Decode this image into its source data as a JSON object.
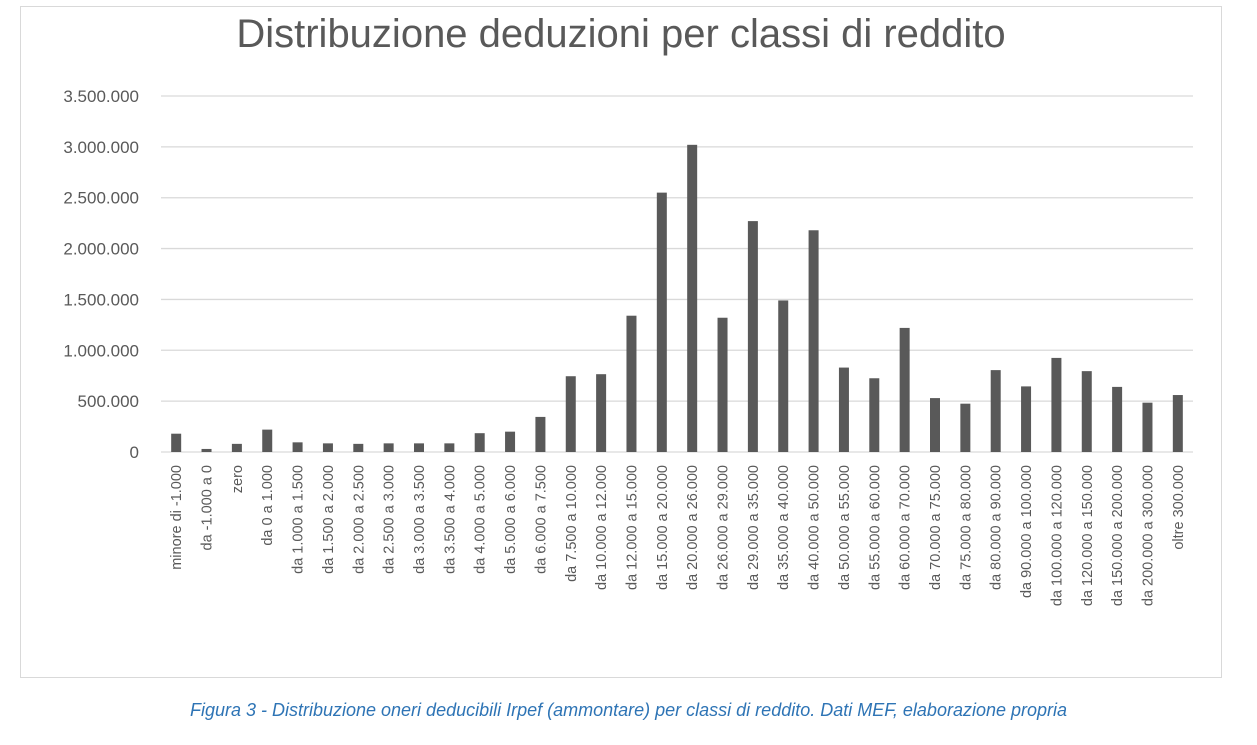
{
  "caption": "Figura 3 - Distribuzione oneri deducibili Irpef (ammontare) per classi di reddito. Dati MEF, elaborazione propria",
  "colors": {
    "bar": "#595959",
    "grid": "#d9d9d9",
    "text": "#595959",
    "caption": "#2e74b5"
  },
  "chart_data": {
    "type": "bar",
    "title": "Distribuzione deduzioni per classi di reddito",
    "xlabel": "",
    "ylabel": "",
    "ylim": [
      0,
      3500000
    ],
    "yticks": [
      0,
      500000,
      1000000,
      1500000,
      2000000,
      2500000,
      3000000,
      3500000
    ],
    "ytick_labels": [
      "0",
      "500.000",
      "1.000.000",
      "1.500.000",
      "2.000.000",
      "2.500.000",
      "3.000.000",
      "3.500.000"
    ],
    "grid": true,
    "legend": "none",
    "categories": [
      "minore di -1.000",
      "da -1.000 a 0",
      "zero",
      "da 0 a 1.000",
      "da 1.000 a 1.500",
      "da 1.500 a 2.000",
      "da 2.000 a 2.500",
      "da 2.500 a 3.000",
      "da 3.000 a 3.500",
      "da 3.500 a 4.000",
      "da 4.000 a 5.000",
      "da 5.000 a 6.000",
      "da 6.000 a 7.500",
      "da 7.500 a 10.000",
      "da 10.000 a 12.000",
      "da 12.000 a 15.000",
      "da 15.000 a 20.000",
      "da 20.000 a 26.000",
      "da 26.000 a 29.000",
      "da 29.000 a 35.000",
      "da 35.000 a 40.000",
      "da 40.000 a 50.000",
      "da 50.000 a 55.000",
      "da 55.000 a 60.000",
      "da 60.000 a 70.000",
      "da 70.000 a 75.000",
      "da 75.000 a 80.000",
      "da 80.000 a 90.000",
      "da 90.000 a 100.000",
      "da 100.000 a 120.000",
      "da 120.000 a 150.000",
      "da 150.000 a 200.000",
      "da 200.000 a 300.000",
      "oltre 300.000"
    ],
    "values": [
      180000,
      30000,
      80000,
      220000,
      95000,
      85000,
      80000,
      85000,
      85000,
      85000,
      185000,
      200000,
      345000,
      745000,
      765000,
      1340000,
      2550000,
      3020000,
      1320000,
      2270000,
      1490000,
      2180000,
      830000,
      725000,
      1220000,
      530000,
      475000,
      805000,
      645000,
      925000,
      795000,
      640000,
      485000,
      560000
    ]
  }
}
